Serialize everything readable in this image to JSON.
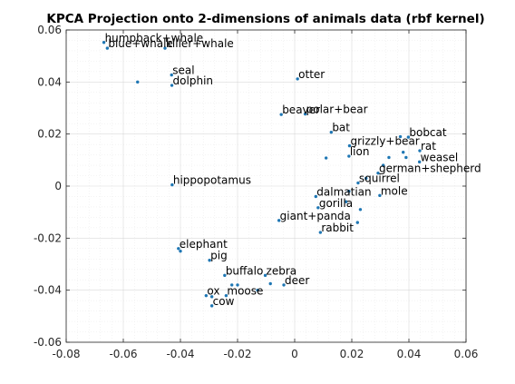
{
  "chart_data": {
    "type": "scatter",
    "title": "KPCA Projection onto 2-dimensions of animals data (rbf kernel)",
    "xlabel": "",
    "ylabel": "",
    "xlim": [
      -0.08,
      0.06
    ],
    "ylim": [
      -0.06,
      0.06
    ],
    "xticks": [
      -0.08,
      -0.06,
      -0.04,
      -0.02,
      0,
      0.02,
      0.04,
      0.06
    ],
    "yticks": [
      -0.06,
      -0.04,
      -0.02,
      0,
      0.02,
      0.04,
      0.06
    ],
    "xtick_labels": [
      "-0.08",
      "-0.06",
      "-0.04",
      "-0.02",
      "0",
      "0.02",
      "0.04",
      "0.06"
    ],
    "ytick_labels": [
      "-0.06",
      "-0.04",
      "-0.02",
      "0",
      "0.02",
      "0.04",
      "0.06"
    ],
    "grid": true,
    "minor_grid": true,
    "marker_color": "#1f77b4",
    "labeled_points": [
      {
        "label": "humpback+whale",
        "x": -0.0668,
        "y": 0.0552
      },
      {
        "label": "blue+whale",
        "x": -0.0656,
        "y": 0.053
      },
      {
        "label": "killer+whale",
        "x": -0.0454,
        "y": 0.053
      },
      {
        "label": "seal",
        "x": -0.0431,
        "y": 0.0427
      },
      {
        "label": "dolphin",
        "x": -0.043,
        "y": 0.0387
      },
      {
        "label": "otter",
        "x": 0.001,
        "y": 0.0412
      },
      {
        "label": "polar+bear",
        "x": 0.0037,
        "y": 0.0277
      },
      {
        "label": "beaver",
        "x": -0.0047,
        "y": 0.0275
      },
      {
        "label": "bat",
        "x": 0.0128,
        "y": 0.0207
      },
      {
        "label": "bobcat",
        "x": 0.0398,
        "y": 0.0188
      },
      {
        "label": "grizzly+bear",
        "x": 0.0192,
        "y": 0.0155
      },
      {
        "label": "rat",
        "x": 0.0438,
        "y": 0.0136
      },
      {
        "label": "lion",
        "x": 0.019,
        "y": 0.0115
      },
      {
        "label": "weasel",
        "x": 0.0437,
        "y": 0.0093
      },
      {
        "label": "german+shepherd",
        "x": 0.0292,
        "y": 0.005
      },
      {
        "label": "squirrel",
        "x": 0.0222,
        "y": 0.0012
      },
      {
        "label": "hippopotamus",
        "x": -0.0429,
        "y": 0.0005
      },
      {
        "label": "dalmatian",
        "x": 0.0074,
        "y": -0.004
      },
      {
        "label": "mole",
        "x": 0.0298,
        "y": -0.0036
      },
      {
        "label": "gorilla",
        "x": 0.0082,
        "y": -0.0083
      },
      {
        "label": "giant+panda",
        "x": -0.0055,
        "y": -0.0132
      },
      {
        "label": "rabbit",
        "x": 0.009,
        "y": -0.0178
      },
      {
        "label": "elephant",
        "x": -0.0407,
        "y": -0.024
      },
      {
        "label": "pig",
        "x": -0.0298,
        "y": -0.0285
      },
      {
        "label": "buffalo",
        "x": -0.0245,
        "y": -0.0343
      },
      {
        "label": "zebra",
        "x": -0.0103,
        "y": -0.0343
      },
      {
        "label": "deer",
        "x": -0.0038,
        "y": -0.038
      },
      {
        "label": "ox",
        "x": -0.031,
        "y": -0.0421
      },
      {
        "label": "moose",
        "x": -0.024,
        "y": -0.0421
      },
      {
        "label": "cow",
        "x": -0.029,
        "y": -0.046
      }
    ],
    "unlabeled_points": [
      {
        "x": -0.055,
        "y": 0.04
      },
      {
        "x": 0.011,
        "y": 0.0108
      },
      {
        "x": 0.037,
        "y": 0.019
      },
      {
        "x": 0.033,
        "y": 0.011
      },
      {
        "x": 0.038,
        "y": 0.013
      },
      {
        "x": 0.039,
        "y": 0.011
      },
      {
        "x": 0.031,
        "y": 0.008
      },
      {
        "x": 0.025,
        "y": 0.003
      },
      {
        "x": 0.019,
        "y": -0.002
      },
      {
        "x": 0.023,
        "y": -0.009
      },
      {
        "x": 0.022,
        "y": -0.014
      },
      {
        "x": 0.018,
        "y": -0.006
      },
      {
        "x": -0.04,
        "y": -0.025
      },
      {
        "x": -0.02,
        "y": -0.038
      },
      {
        "x": -0.022,
        "y": -0.038
      },
      {
        "x": -0.029,
        "y": -0.0425
      },
      {
        "x": -0.013,
        "y": -0.04
      },
      {
        "x": -0.0085,
        "y": -0.0375
      }
    ]
  }
}
